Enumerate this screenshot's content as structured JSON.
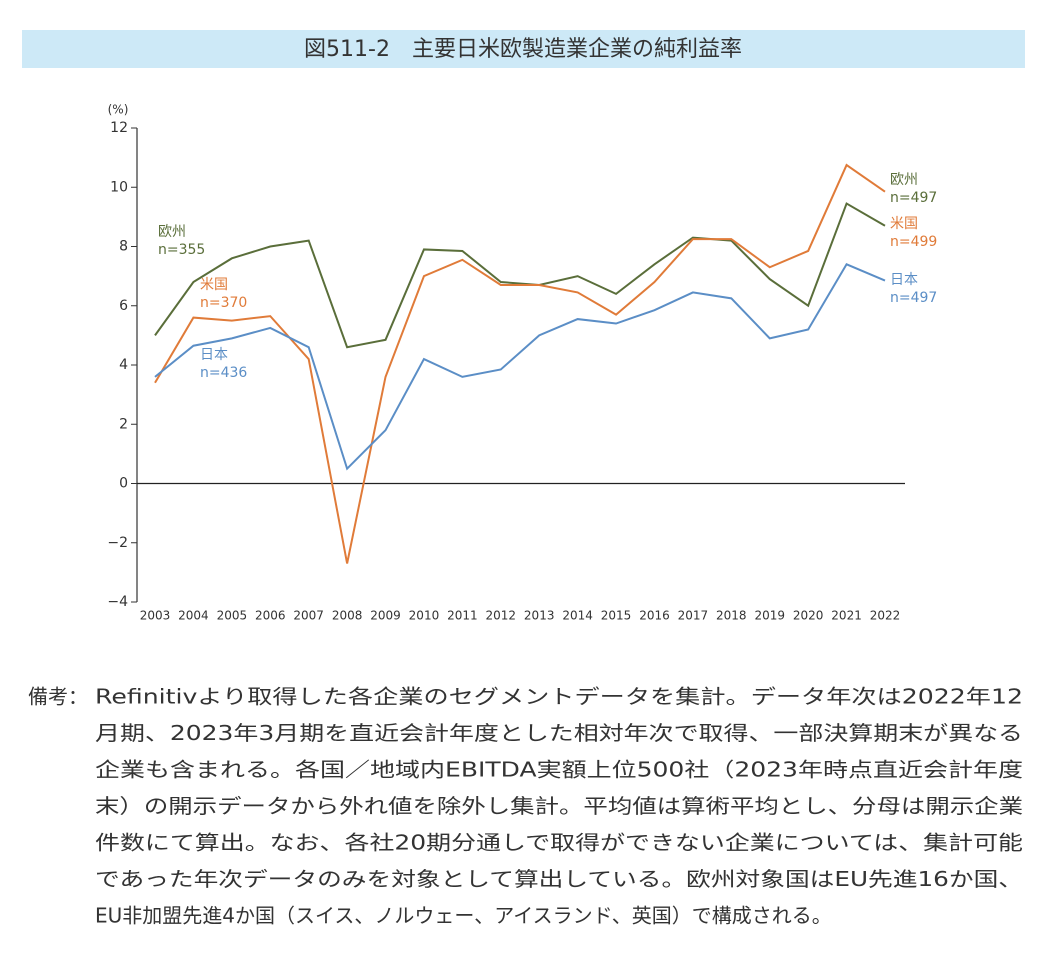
{
  "title": "図511-2　主要日米欧製造業企業の純利益率",
  "chart_data": {
    "type": "line",
    "ylabel": "(%)",
    "categories": [
      "2003",
      "2004",
      "2005",
      "2006",
      "2007",
      "2008",
      "2009",
      "2010",
      "2011",
      "2012",
      "2013",
      "2014",
      "2015",
      "2016",
      "2017",
      "2018",
      "2019",
      "2020",
      "2021",
      "2022"
    ],
    "ylim": [
      -4,
      12
    ],
    "yticks": [
      {
        "value": -4,
        "label": "−4"
      },
      {
        "value": -2,
        "label": "−2"
      },
      0,
      2,
      4,
      6,
      8,
      10,
      12
    ],
    "series": [
      {
        "color": "#5a6e3a",
        "labels": {
          "start": [
            "欧州",
            "n=355"
          ],
          "end": [
            "欧州",
            "n=497"
          ]
        },
        "values": [
          5.0,
          6.8,
          7.6,
          8.0,
          8.2,
          4.6,
          4.85,
          7.9,
          7.85,
          6.8,
          6.7,
          7.0,
          6.4,
          7.4,
          8.3,
          8.2,
          6.9,
          6.0,
          9.45,
          8.7
        ]
      },
      {
        "color": "#e07b39",
        "labels": {
          "start": [
            "米国",
            "n=370"
          ],
          "end": [
            "米国",
            "n=499"
          ]
        },
        "values": [
          3.4,
          5.6,
          5.5,
          5.65,
          4.2,
          -2.7,
          3.6,
          7.0,
          7.55,
          6.7,
          6.7,
          6.45,
          5.7,
          6.8,
          8.25,
          8.25,
          7.3,
          7.85,
          10.75,
          9.85
        ]
      },
      {
        "color": "#5b8ec6",
        "labels": {
          "start": [
            "日本",
            "n=436"
          ],
          "end": [
            "日本",
            "n=497"
          ]
        },
        "values": [
          3.6,
          4.65,
          4.9,
          5.25,
          4.6,
          0.5,
          1.8,
          4.2,
          3.6,
          3.85,
          5.0,
          5.55,
          5.4,
          5.85,
          6.45,
          6.25,
          4.9,
          5.2,
          7.4,
          6.85
        ]
      }
    ]
  },
  "note": {
    "label": "備考：",
    "lines": [
      "Refinitivより取得した各企業のセグメントデータを集計。データ年次は2022年12",
      "月期、2023年3月期を直近会計年度とした相対年次で取得、一部決算期末が異なる",
      "企業も含まれる。各国／地域内EBITDA実額上位500社（2023年時点直近会計年度",
      "末）の開示データから外れ値を除外し集計。平均値は算術平均とし、分母は開示企業",
      "件数にて算出。なお、各社20期分通しで取得ができない企業については、集計可能",
      "であった年次データのみを対象として算出している。欧州対象国はEU先進16か国、",
      "EU非加盟先進4か国（スイス、ノルウェー、アイスランド、英国）で構成される。"
    ]
  }
}
